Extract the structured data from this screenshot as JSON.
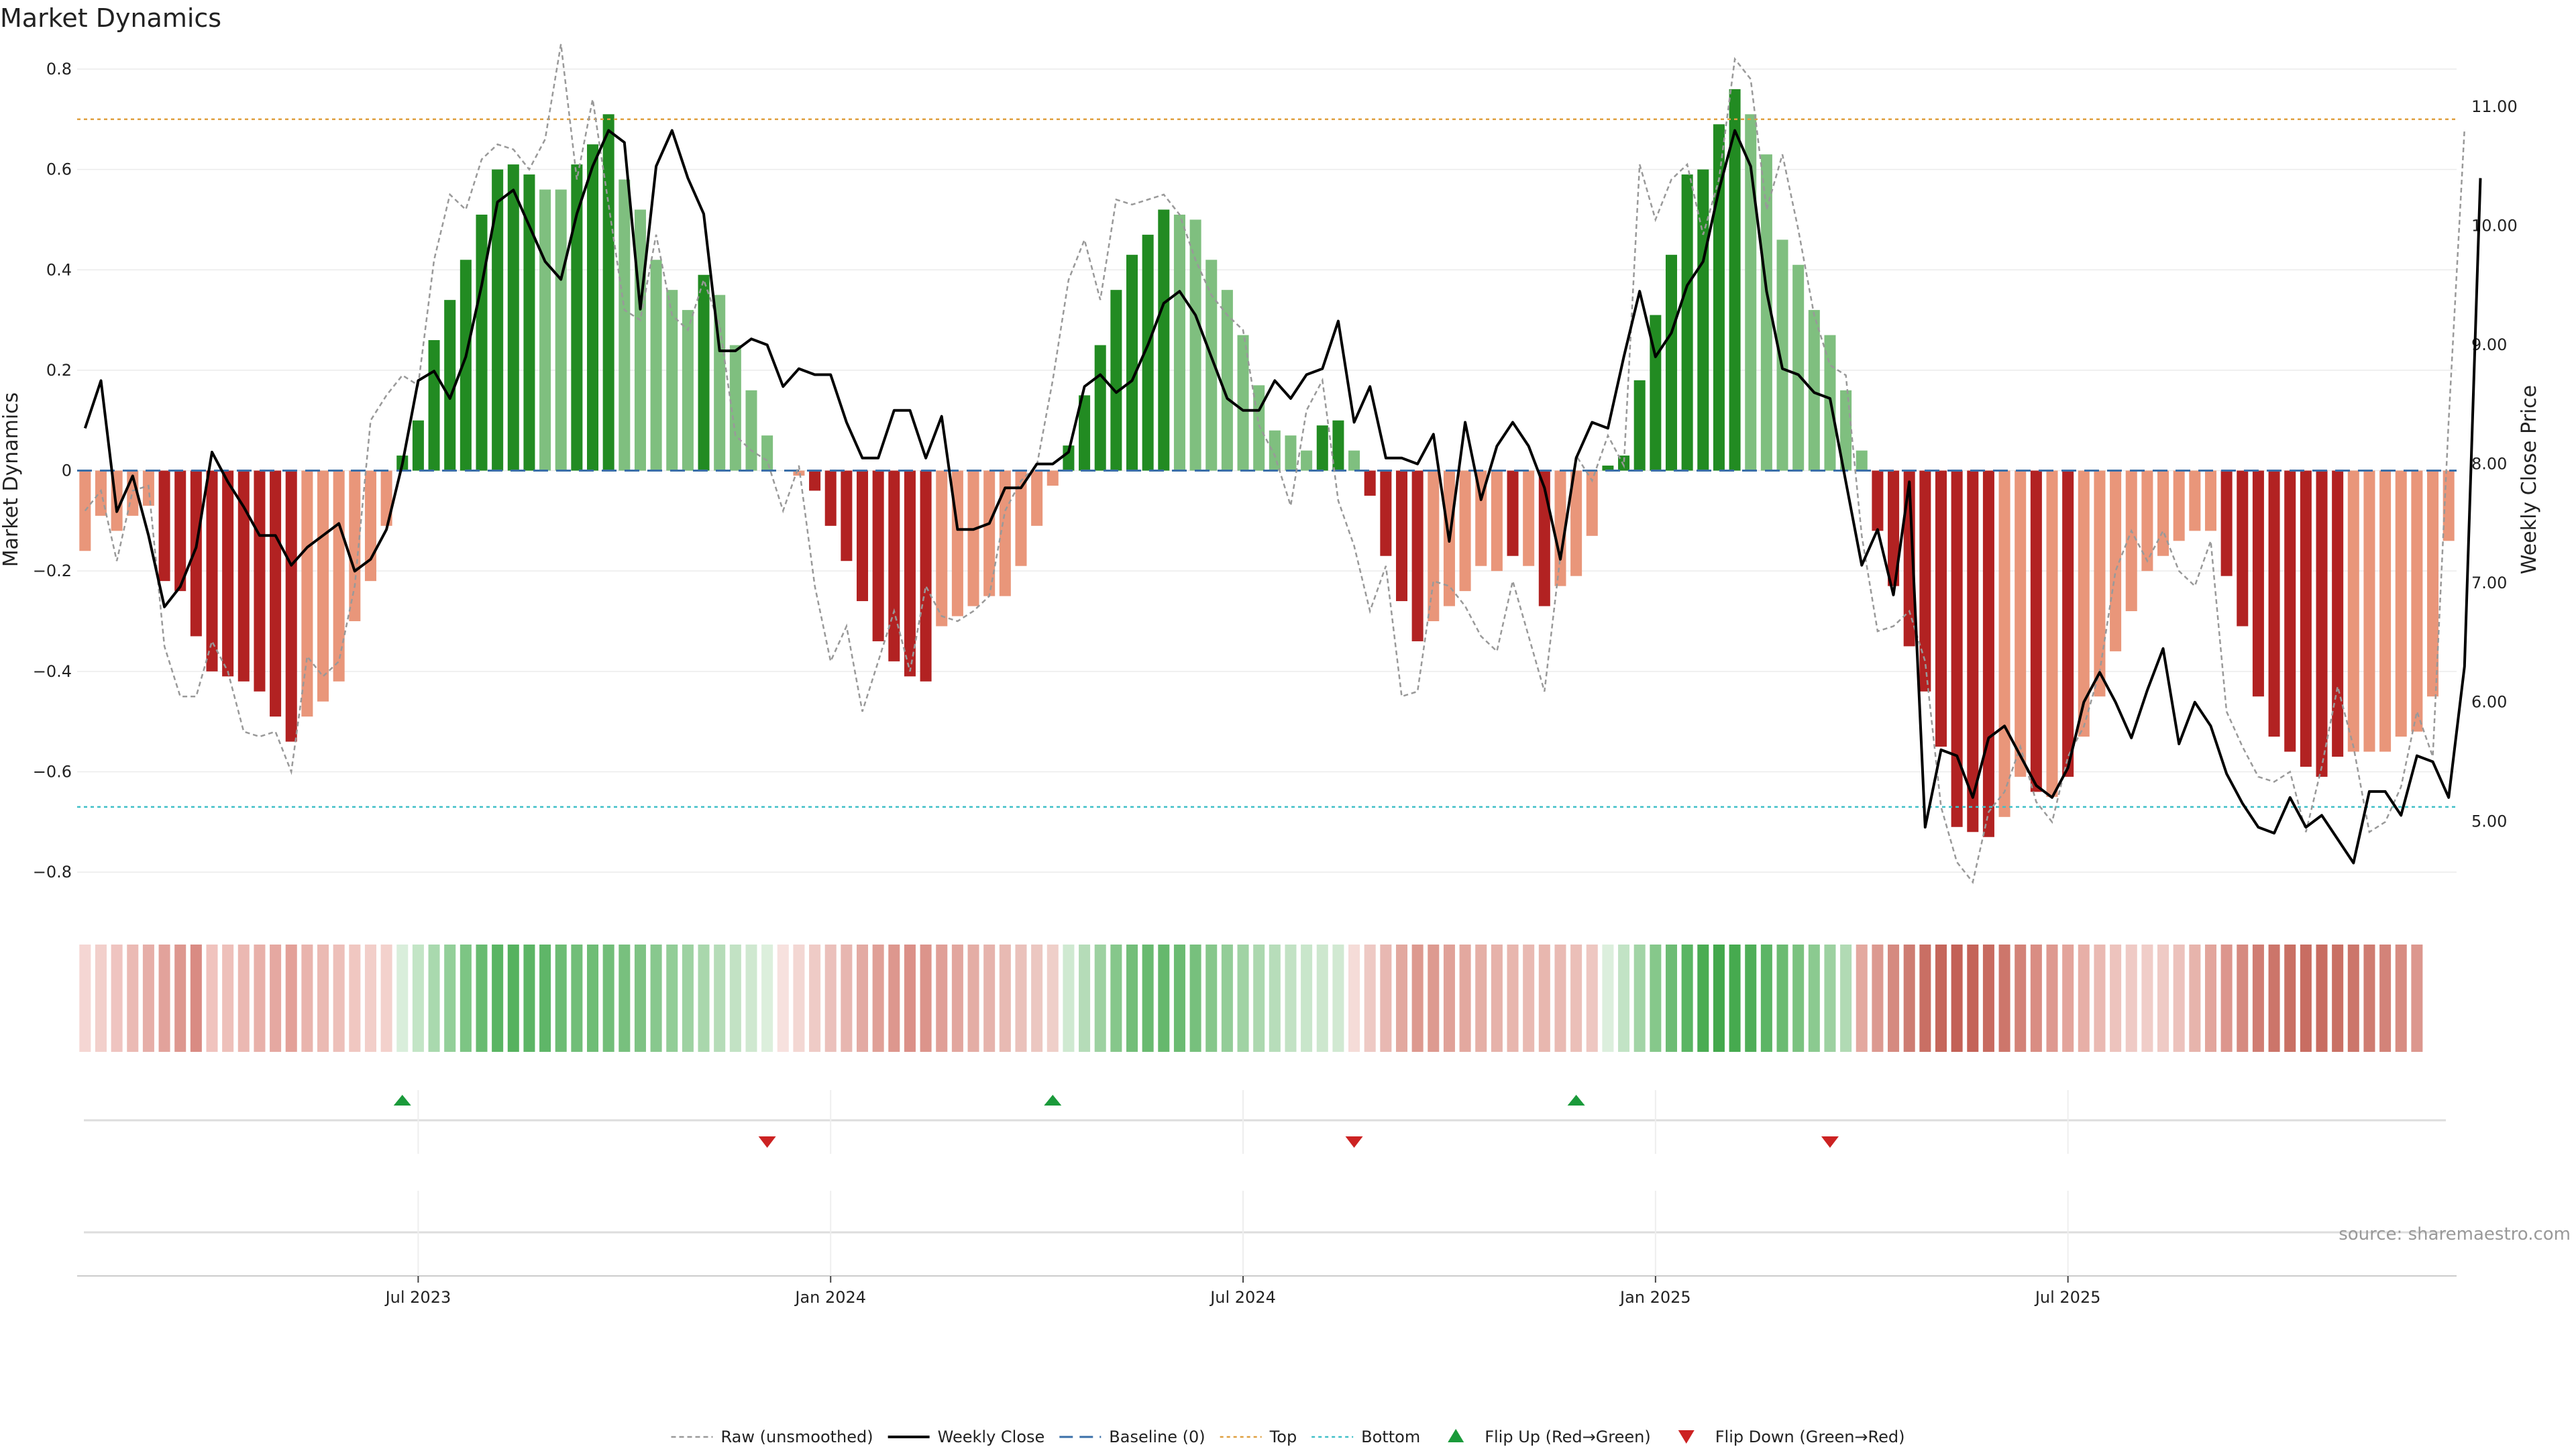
{
  "title": "Market Dynamics",
  "source": "source: sharemaestro.com",
  "chart_data": {
    "type": "bar",
    "ylabel": "Market Dynamics",
    "y2label": "Weekly Close Price",
    "ylim": [
      -0.86,
      0.82
    ],
    "y2lim": [
      4.32,
      11.4
    ],
    "yticks": [
      -0.8,
      -0.6,
      -0.4,
      -0.2,
      0,
      0.2,
      0.4,
      0.6,
      0.8
    ],
    "ytick_labels": [
      "−0.8",
      "−0.6",
      "−0.4",
      "−0.2",
      "0",
      "0.2",
      "0.4",
      "0.6",
      "0.8"
    ],
    "y2ticks": [
      5.0,
      6.0,
      7.0,
      8.0,
      9.0,
      10.0,
      11.0
    ],
    "y2tick_labels": [
      "5.00",
      "6.00",
      "7.00",
      "8.00",
      "9.00",
      "10.00",
      "11.00"
    ],
    "x_ticks": [
      {
        "week": 21,
        "label": "Jul 2023"
      },
      {
        "week": 47,
        "label": "Jan 2024"
      },
      {
        "week": 73,
        "label": "Jul 2024"
      },
      {
        "week": 99,
        "label": "Jan 2025"
      },
      {
        "week": 125,
        "label": "Jul 2025"
      }
    ],
    "reference_lines": {
      "top": 0.7,
      "bottom": -0.67,
      "baseline": 0
    },
    "grid": true,
    "legend_position": "bottom-center",
    "colors": {
      "strong_red": "#b22222",
      "weak_red": "#e9967a",
      "strong_green": "#228b22",
      "weak_green": "#7fbf7f",
      "raw": "#999999",
      "close": "#000000",
      "baseline": "#3a6fa8",
      "top": "#e0a040",
      "bottom": "#40c0c8",
      "flip_up": "#1a9a3a",
      "flip_down": "#cc2222"
    },
    "bars": [
      -0.16,
      -0.09,
      -0.12,
      -0.09,
      -0.07,
      -0.22,
      -0.24,
      -0.33,
      -0.4,
      -0.41,
      -0.42,
      -0.44,
      -0.49,
      -0.54,
      -0.49,
      -0.46,
      -0.42,
      -0.3,
      -0.22,
      -0.11,
      0.03,
      0.1,
      0.26,
      0.34,
      0.42,
      0.51,
      0.6,
      0.61,
      0.59,
      0.56,
      0.56,
      0.61,
      0.65,
      0.71,
      0.58,
      0.52,
      0.42,
      0.36,
      0.32,
      0.39,
      0.35,
      0.25,
      0.16,
      0.07,
      0,
      -0.01,
      -0.04,
      -0.11,
      -0.18,
      -0.26,
      -0.34,
      -0.38,
      -0.41,
      -0.42,
      -0.31,
      -0.29,
      -0.27,
      -0.25,
      -0.25,
      -0.19,
      -0.11,
      -0.03,
      0.05,
      0.15,
      0.25,
      0.36,
      0.43,
      0.47,
      0.52,
      0.51,
      0.5,
      0.42,
      0.36,
      0.27,
      0.17,
      0.08,
      0.07,
      0.04,
      0.09,
      0.1,
      0.04,
      -0.05,
      -0.17,
      -0.26,
      -0.34,
      -0.3,
      -0.27,
      -0.24,
      -0.19,
      -0.2,
      -0.17,
      -0.19,
      -0.27,
      -0.23,
      -0.21,
      -0.13,
      0.01,
      0.03,
      0.18,
      0.31,
      0.43,
      0.59,
      0.6,
      0.69,
      0.76,
      0.71,
      0.63,
      0.46,
      0.41,
      0.32,
      0.27,
      0.16,
      0.04,
      -0.12,
      -0.23,
      -0.35,
      -0.44,
      -0.55,
      -0.71,
      -0.72,
      -0.73,
      -0.69,
      -0.61,
      -0.64,
      -0.65,
      -0.61,
      -0.53,
      -0.45,
      -0.36,
      -0.28,
      -0.2,
      -0.17,
      -0.14,
      -0.12,
      -0.12,
      -0.21,
      -0.31,
      -0.45,
      -0.53,
      -0.56,
      -0.59,
      -0.61,
      -0.57,
      -0.56,
      -0.56,
      -0.56,
      -0.53,
      -0.52,
      -0.45,
      -0.14
    ],
    "bar_shades": [
      1,
      1,
      1,
      1,
      1,
      0,
      0,
      0,
      0,
      0,
      0,
      0,
      0,
      0,
      1,
      1,
      1,
      1,
      1,
      1,
      2,
      2,
      2,
      2,
      2,
      2,
      2,
      2,
      2,
      3,
      3,
      2,
      2,
      2,
      3,
      3,
      3,
      3,
      3,
      2,
      3,
      3,
      3,
      3,
      3,
      1,
      0,
      0,
      0,
      0,
      0,
      0,
      0,
      0,
      1,
      1,
      1,
      1,
      1,
      1,
      1,
      1,
      2,
      2,
      2,
      2,
      2,
      2,
      2,
      3,
      3,
      3,
      3,
      3,
      3,
      3,
      3,
      3,
      2,
      2,
      3,
      0,
      0,
      0,
      0,
      1,
      1,
      1,
      1,
      1,
      0,
      1,
      0,
      1,
      1,
      1,
      2,
      2,
      2,
      2,
      2,
      2,
      2,
      2,
      2,
      3,
      3,
      3,
      3,
      3,
      3,
      3,
      3,
      0,
      0,
      0,
      0,
      0,
      0,
      0,
      0,
      1,
      1,
      0,
      1,
      0,
      1,
      1,
      1,
      1,
      1,
      1,
      1,
      1,
      1,
      0,
      0,
      0,
      0,
      0,
      0,
      0,
      0,
      1,
      1,
      1,
      1,
      1,
      1,
      1
    ],
    "raw": [
      -0.08,
      -0.04,
      -0.18,
      -0.04,
      -0.03,
      -0.35,
      -0.45,
      -0.45,
      -0.34,
      -0.4,
      -0.52,
      -0.53,
      -0.52,
      -0.6,
      -0.37,
      -0.41,
      -0.38,
      -0.23,
      0.1,
      0.15,
      0.19,
      0.17,
      0.42,
      0.55,
      0.52,
      0.62,
      0.65,
      0.64,
      0.6,
      0.66,
      0.85,
      0.58,
      0.74,
      0.53,
      0.32,
      0.3,
      0.47,
      0.31,
      0.28,
      0.38,
      0.29,
      0.07,
      0.04,
      0.02,
      -0.08,
      0.01,
      -0.23,
      -0.38,
      -0.31,
      -0.48,
      -0.38,
      -0.28,
      -0.4,
      -0.23,
      -0.29,
      -0.3,
      -0.28,
      -0.25,
      -0.08,
      -0.02,
      0.01,
      0.18,
      0.38,
      0.46,
      0.34,
      0.54,
      0.53,
      0.54,
      0.55,
      0.51,
      0.42,
      0.35,
      0.31,
      0.28,
      0.09,
      0.03,
      -0.07,
      0.12,
      0.18,
      -0.06,
      -0.15,
      -0.28,
      -0.19,
      -0.45,
      -0.44,
      -0.22,
      -0.23,
      -0.27,
      -0.33,
      -0.36,
      -0.22,
      -0.33,
      -0.44,
      -0.17,
      0.03,
      -0.02,
      0.07,
      0.01,
      0.61,
      0.5,
      0.58,
      0.61,
      0.47,
      0.58,
      0.82,
      0.78,
      0.52,
      0.63,
      0.48,
      0.31,
      0.21,
      0.19,
      -0.13,
      -0.32,
      -0.31,
      -0.28,
      -0.38,
      -0.67,
      -0.78,
      -0.82,
      -0.68,
      -0.64,
      -0.55,
      -0.66,
      -0.7,
      -0.57,
      -0.51,
      -0.4,
      -0.2,
      -0.12,
      -0.18,
      -0.12,
      -0.2,
      -0.23,
      -0.14,
      -0.48,
      -0.55,
      -0.61,
      -0.62,
      -0.6,
      -0.72,
      -0.59,
      -0.43,
      -0.55,
      -0.72,
      -0.7,
      -0.63,
      -0.48,
      -0.57,
      0.1,
      0.68
    ],
    "close": [
      8.3,
      8.7,
      7.6,
      7.9,
      7.4,
      6.8,
      6.97,
      7.3,
      8.1,
      7.85,
      7.64,
      7.4,
      7.4,
      7.15,
      7.3,
      7.4,
      7.5,
      7.1,
      7.2,
      7.45,
      8.0,
      8.7,
      8.78,
      8.55,
      8.9,
      9.5,
      10.2,
      10.3,
      10.0,
      9.7,
      9.55,
      10.1,
      10.5,
      10.8,
      10.7,
      9.3,
      10.5,
      10.8,
      10.4,
      10.1,
      8.95,
      8.95,
      9.05,
      9.0,
      8.65,
      8.8,
      8.75,
      8.75,
      8.35,
      8.05,
      8.05,
      8.45,
      8.45,
      8.05,
      8.4,
      7.45,
      7.45,
      7.5,
      7.8,
      7.8,
      8.0,
      8.0,
      8.1,
      8.65,
      8.75,
      8.6,
      8.7,
      9.0,
      9.35,
      9.45,
      9.25,
      8.9,
      8.55,
      8.45,
      8.45,
      8.7,
      8.55,
      8.75,
      8.8,
      9.2,
      8.35,
      8.65,
      8.05,
      8.05,
      8.0,
      8.25,
      7.35,
      8.35,
      7.7,
      8.15,
      8.35,
      8.15,
      7.8,
      7.2,
      8.05,
      8.35,
      8.3,
      8.9,
      9.45,
      8.9,
      9.1,
      9.5,
      9.7,
      10.3,
      10.8,
      10.5,
      9.45,
      8.8,
      8.75,
      8.6,
      8.55,
      7.85,
      7.15,
      7.45,
      6.9,
      7.85,
      4.95,
      5.6,
      5.55,
      5.2,
      5.7,
      5.8,
      5.55,
      5.3,
      5.2,
      5.45,
      6.0,
      6.25,
      6.0,
      5.7,
      6.1,
      6.45,
      5.65,
      6.0,
      5.8,
      5.4,
      5.15,
      4.95,
      4.9,
      5.2,
      4.95,
      5.05,
      4.85,
      4.65,
      5.25,
      5.25,
      5.05,
      5.55,
      5.5,
      5.2,
      6.3,
      10.4
    ],
    "flip_up_weeks": [
      20,
      61,
      94
    ],
    "flip_down_weeks": [
      43,
      80,
      110
    ],
    "legend": [
      {
        "key": "raw",
        "label": "Raw (unsmoothed)"
      },
      {
        "key": "close",
        "label": "Weekly Close"
      },
      {
        "key": "baseline",
        "label": "Baseline (0)"
      },
      {
        "key": "top",
        "label": "Top"
      },
      {
        "key": "bottom",
        "label": "Bottom"
      },
      {
        "key": "flip_up",
        "label": "Flip Up (Red→Green)"
      },
      {
        "key": "flip_down",
        "label": "Flip Down (Green→Red)"
      }
    ],
    "band_colors": [
      "#f5d6d3",
      "#f2cfcb",
      "#efc4c0",
      "#ebbab4",
      "#e6aea8",
      "#e2a29b",
      "#dd978f",
      "#d98b83",
      "#f0c3be",
      "#eec0ba",
      "#ebb8b2",
      "#e8b0a9",
      "#e5a8a1",
      "#e3a098",
      "#e9b4ad",
      "#ebbab3",
      "#edbfb9",
      "#f0c7c1",
      "#f2cec9",
      "#f3d1cc",
      "#d9eedb",
      "#c3e5c6",
      "#a9d9ae",
      "#93cf99",
      "#7dc584",
      "#68bb71",
      "#5ab563",
      "#56b25f",
      "#5cb565",
      "#5fb668",
      "#6dbc74",
      "#71be78",
      "#6fbd76",
      "#72be79",
      "#78c07e",
      "#7ec384",
      "#88c88e",
      "#92cd97",
      "#9ed2a2",
      "#a9d7ac",
      "#b5dcb8",
      "#c2e2c4",
      "#cfe8d0",
      "#dcefdc",
      "#f7e1de",
      "#f3d7d3",
      "#efcbc6",
      "#ebc0bb",
      "#e7b6b0",
      "#e3aaa3",
      "#e0a097",
      "#dd978e",
      "#db9088",
      "#dc948b",
      "#e09f97",
      "#e2a69e",
      "#e4ada5",
      "#e6b3ac",
      "#e8bab3",
      "#eac1bb",
      "#ecc7c1",
      "#efcfc9",
      "#cfe9d1",
      "#b5dcb8",
      "#9dd1a1",
      "#86c78b",
      "#73be79",
      "#69ba70",
      "#66b86d",
      "#6bbb72",
      "#77c07d",
      "#86c78b",
      "#93cd98",
      "#a0d3a4",
      "#acd8af",
      "#b7ddba",
      "#c2e2c4",
      "#c9e6cb",
      "#cde7ce",
      "#d1e9d2",
      "#f5dcd8",
      "#eec9c4",
      "#e8b8b2",
      "#e2a89f",
      "#dd998f",
      "#dd9a90",
      "#e0a198",
      "#e3a89f",
      "#e5afa6",
      "#e6b2aa",
      "#e8b6ae",
      "#e9b9b2",
      "#e8b7af",
      "#e9bab3",
      "#ebbfb8",
      "#eec7c1",
      "#dcefdd",
      "#c2e3c5",
      "#a2d4a6",
      "#86c88b",
      "#6dbc74",
      "#5ab563",
      "#4aac53",
      "#43a84c",
      "#46aa4f",
      "#4fae58",
      "#5cb565",
      "#6bbb72",
      "#7ac27f",
      "#8bca90",
      "#9dd1a1",
      "#b1dab4",
      "#e3a89f",
      "#dc9990",
      "#d58a80",
      "#ce7c72",
      "#c96f64",
      "#c5665b",
      "#c36156",
      "#c46358",
      "#c86b60",
      "#cd766b",
      "#d38277",
      "#d98d83",
      "#de9990",
      "#e3a49b",
      "#e7afa7",
      "#eab9b2",
      "#edc3bd",
      "#efcac5",
      "#f0cdc8",
      "#efcac5",
      "#ecc2bc",
      "#e7b4ac",
      "#e2a59c",
      "#dc968d",
      "#d68a80",
      "#d07d73",
      "#cc756a",
      "#c97064",
      "#c86d62",
      "#c86d62",
      "#c97064",
      "#cc766b",
      "#cf7c71",
      "#d38379",
      "#d78c82",
      "#dc978e"
    ]
  }
}
